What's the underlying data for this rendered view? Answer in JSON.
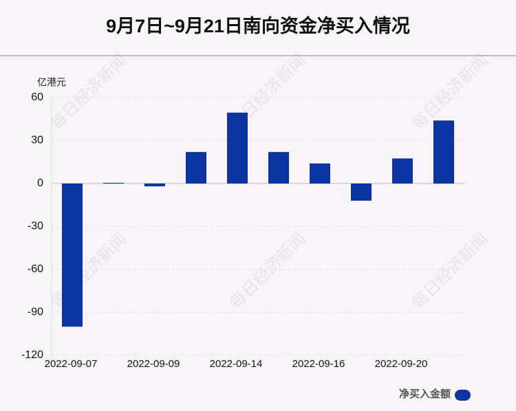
{
  "chart_data": {
    "type": "bar",
    "title": "9月7日~9月21日南向资金净买入情况",
    "y_unit": "亿港元",
    "categories": [
      "2022-09-07",
      null,
      "2022-09-09",
      null,
      "2022-09-14",
      null,
      "2022-09-16",
      null,
      "2022-09-20",
      null
    ],
    "series": [
      {
        "name": "净买入金额",
        "color": "#0b35a0",
        "values": [
          -100,
          0.5,
          -2,
          22,
          49.5,
          22,
          14,
          -12,
          17.5,
          44
        ]
      }
    ],
    "ylim": [
      -120,
      60
    ],
    "yticks": [
      -120,
      -90,
      -60,
      -30,
      0,
      30,
      60
    ],
    "grid": true,
    "legend": "bottom-right",
    "watermark": "每日经济新闻"
  }
}
